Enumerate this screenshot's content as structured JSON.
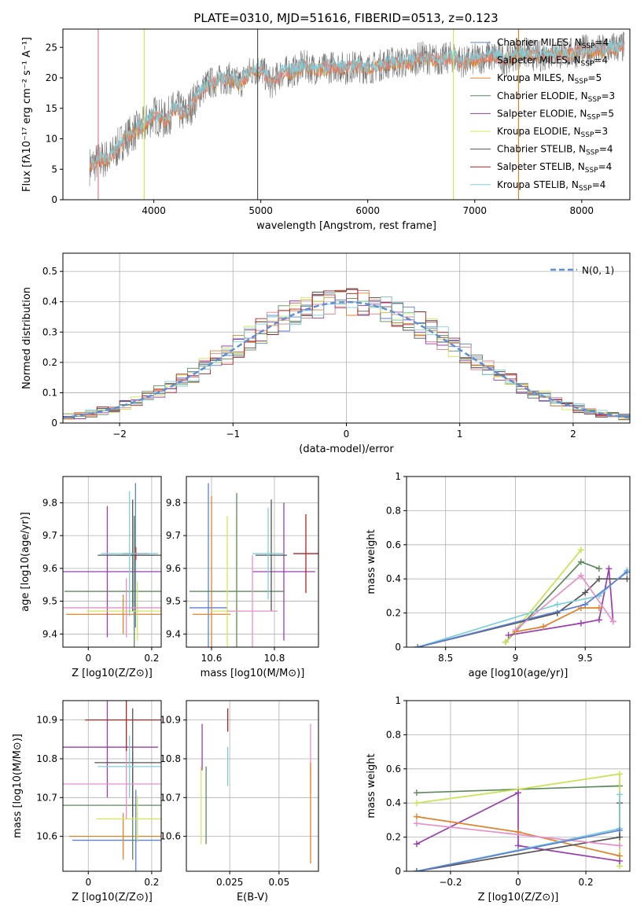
{
  "title": "PLATE=0310, MJD=51616, FIBERID=0513, z=0.123",
  "colors": {
    "Chabrier MILES": "#5b7fd6",
    "Salpeter MILES": "#e37f7f",
    "Kroupa MILES": "#e0822a",
    "Chabrier ELODIE": "#5c8a5c",
    "Salpeter ELODIE": "#9b3db0",
    "Kroupa ELODIE": "#d4e65a",
    "Chabrier STELIB": "#555555",
    "Salpeter STELIB": "#b22222",
    "Kroupa STELIB": "#7ecfd9",
    "Kroupa ELODIE bright": "#c7e34d",
    "Salpeter ELODIE pink": "#e88fc9",
    "normal": "#5b8fd6"
  },
  "chart_data": [
    {
      "id": "spectrum",
      "type": "line",
      "xlabel": "wavelength [Angstrom, rest frame]",
      "ylabel": "Flux [fλ10⁻¹⁷ erg cm⁻² s⁻¹ A⁻¹]",
      "xlim": [
        3150,
        8450
      ],
      "ylim": [
        0,
        28
      ],
      "xticks": [
        4000,
        5000,
        6000,
        7000,
        8000
      ],
      "yticks": [
        0,
        5,
        10,
        15,
        20,
        25
      ],
      "legend_position": "top-right",
      "legend": [
        {
          "label": "Chabrier MILES, N",
          "sub": "SSP",
          "suffix": "=4",
          "color": "#5b7fd6"
        },
        {
          "label": "Salpeter MILES, N",
          "sub": "SSP",
          "suffix": "=4",
          "color": "#e37f7f"
        },
        {
          "label": "Kroupa MILES, N",
          "sub": "SSP",
          "suffix": "=5",
          "color": "#e0822a"
        },
        {
          "label": "Chabrier ELODIE, N",
          "sub": "SSP",
          "suffix": "=3",
          "color": "#5c8a5c"
        },
        {
          "label": "Salpeter ELODIE, N",
          "sub": "SSP",
          "suffix": "=5",
          "color": "#9b3db0"
        },
        {
          "label": "Kroupa ELODIE, N",
          "sub": "SSP",
          "suffix": "=3",
          "color": "#d4e65a"
        },
        {
          "label": "Chabrier STELIB, N",
          "sub": "SSP",
          "suffix": "=4",
          "color": "#555555"
        },
        {
          "label": "Salpeter STELIB, N",
          "sub": "SSP",
          "suffix": "=4",
          "color": "#b22222"
        },
        {
          "label": "Kroupa STELIB, N",
          "sub": "SSP",
          "suffix": "=4",
          "color": "#7ecfd9"
        }
      ],
      "model_curve": {
        "x": [
          3400,
          3500,
          3600,
          3700,
          3800,
          3900,
          4000,
          4100,
          4200,
          4300,
          4400,
          4500,
          4600,
          4700,
          4800,
          4900,
          5000,
          5100,
          5200,
          5300,
          5400,
          5500,
          5600,
          5700,
          5800,
          5900,
          6000,
          6100,
          6200,
          6300,
          6400,
          6500,
          6600,
          6700,
          6800,
          6900,
          7000,
          7100,
          7200,
          7300,
          7400,
          7500,
          7600,
          7700,
          7800,
          7900,
          8000,
          8100,
          8200,
          8300,
          8400
        ],
        "y": [
          5.5,
          6.5,
          7,
          9.5,
          11,
          12,
          14,
          13,
          15,
          14,
          17,
          19,
          19.5,
          20,
          19,
          21,
          21.5,
          19,
          21,
          21,
          22,
          21.5,
          21.5,
          22,
          21.5,
          22,
          21.5,
          22,
          22.5,
          22.5,
          22.5,
          23.5,
          23,
          23,
          23.5,
          22.5,
          23,
          23.5,
          23.5,
          23,
          24,
          24,
          23.5,
          24,
          24,
          24,
          24.5,
          24.5,
          24.5,
          25,
          25
        ]
      },
      "drop_lines": [
        {
          "x": 3480,
          "color": "#e37f7f"
        },
        {
          "x": 3910,
          "color": "#d4e65a"
        },
        {
          "x": 4970,
          "color": "#555555"
        },
        {
          "x": 6800,
          "color": "#d4e65a"
        },
        {
          "x": 7410,
          "color": "#e0822a"
        }
      ]
    },
    {
      "id": "residuals",
      "type": "histogram",
      "xlabel": "(data-model)/error",
      "ylabel": "Normed distribution",
      "xlim": [
        -2.5,
        2.5
      ],
      "ylim": [
        0,
        0.56
      ],
      "xticks": [
        -2,
        -1,
        0,
        1,
        2
      ],
      "yticks": [
        0.0,
        0.1,
        0.2,
        0.3,
        0.4,
        0.5
      ],
      "legend": {
        "label": "N(0, 1)",
        "position": "top-right"
      },
      "bin_width": 0.1
    },
    {
      "id": "age_vs_Z",
      "type": "errorbar",
      "xlabel": "Z [log10(Z/Z⊙)]",
      "ylabel": "age  [log10(age/yr)]",
      "xlim": [
        -0.08,
        0.23
      ],
      "ylim": [
        9.36,
        9.88
      ],
      "xticks": [
        0.0,
        0.2
      ],
      "yticks": [
        9.4,
        9.5,
        9.6,
        9.7,
        9.8
      ],
      "points": [
        {
          "x": 0.149,
          "y": 9.64,
          "xerr": 0.06,
          "yerr": 0.22,
          "color": "#5b7fd6"
        },
        {
          "x": 0.11,
          "y": 9.46,
          "xerr": 0.18,
          "yerr": 0.06,
          "color": "#e0822a"
        },
        {
          "x": 0.145,
          "y": 9.53,
          "xerr": 0.22,
          "yerr": 0.23,
          "color": "#5c8a5c"
        },
        {
          "x": 0.06,
          "y": 9.59,
          "xerr": 0.18,
          "yerr": 0.2,
          "color": "#9b3db0"
        },
        {
          "x": 0.155,
          "y": 9.47,
          "xerr": 0.16,
          "yerr": 0.09,
          "color": "#d4e65a"
        },
        {
          "x": 0.14,
          "y": 9.64,
          "xerr": 0.11,
          "yerr": 0.17,
          "color": "#555555"
        },
        {
          "x": 0.12,
          "y": 9.48,
          "xerr": 0.2,
          "yerr": 0.09,
          "color": "#e88fc9"
        },
        {
          "x": 0.15,
          "y": 9.645,
          "xerr": 0.04,
          "yerr": 0.02,
          "color": "#b22222"
        },
        {
          "x": 0.13,
          "y": 9.645,
          "xerr": 0.09,
          "yerr": 0.19,
          "color": "#7ecfd9"
        }
      ]
    },
    {
      "id": "age_vs_mass",
      "type": "errorbar",
      "xlabel": "mass [log10(M/M⊙)]",
      "xlim": [
        10.52,
        10.94
      ],
      "ylim": [
        9.36,
        9.88
      ],
      "xticks": [
        10.6,
        10.8
      ],
      "yticks": [
        9.4,
        9.5,
        9.6,
        9.7,
        9.8
      ],
      "points": [
        {
          "x": 10.59,
          "y": 9.48,
          "xerr": 0.06,
          "yerr": 0.38,
          "color": "#5b7fd6"
        },
        {
          "x": 10.6,
          "y": 9.46,
          "xerr": 0.06,
          "yerr": 0.36,
          "color": "#e0822a"
        },
        {
          "x": 10.68,
          "y": 9.53,
          "xerr": 0.15,
          "yerr": 0.3,
          "color": "#5c8a5c"
        },
        {
          "x": 10.83,
          "y": 9.59,
          "xerr": 0.1,
          "yerr": 0.21,
          "color": "#9b3db0"
        },
        {
          "x": 10.65,
          "y": 9.47,
          "xerr": 0.05,
          "yerr": 0.29,
          "color": "#d4e65a"
        },
        {
          "x": 10.79,
          "y": 9.64,
          "xerr": 0.05,
          "yerr": 0.17,
          "color": "#555555"
        },
        {
          "x": 10.73,
          "y": 9.47,
          "xerr": 0.08,
          "yerr": 0.17,
          "color": "#e88fc9"
        },
        {
          "x": 10.9,
          "y": 9.645,
          "xerr": 0.04,
          "yerr": 0.12,
          "color": "#b22222"
        },
        {
          "x": 10.78,
          "y": 9.645,
          "xerr": 0.05,
          "yerr": 0.14,
          "color": "#7ecfd9"
        }
      ]
    },
    {
      "id": "weight_vs_age",
      "type": "line",
      "xlabel": "age  [log10(age/yr)]",
      "ylabel": "mass weight",
      "xlim": [
        8.22,
        9.82
      ],
      "ylim": [
        0,
        1.0
      ],
      "xticks": [
        8.5,
        9.0,
        9.5
      ],
      "yticks": [
        0.0,
        0.2,
        0.4,
        0.6,
        0.8,
        1.0
      ],
      "series": [
        {
          "color": "#5c8a5c",
          "x": [
            8.93,
            9.47,
            9.6
          ],
          "y": [
            0.03,
            0.5,
            0.46
          ]
        },
        {
          "color": "#c7e34d",
          "x": [
            8.93,
            9.47
          ],
          "y": [
            0.03,
            0.57
          ]
        },
        {
          "color": "#9b3db0",
          "x": [
            8.95,
            9.47,
            9.6,
            9.67,
            9.7
          ],
          "y": [
            0.07,
            0.14,
            0.16,
            0.46,
            0.15
          ]
        },
        {
          "color": "#e0822a",
          "x": [
            9.0,
            9.2,
            9.47,
            9.6
          ],
          "y": [
            0.09,
            0.12,
            0.23,
            0.23
          ]
        },
        {
          "color": "#555555",
          "x": [
            8.3,
            9.3,
            9.5,
            9.6,
            9.8
          ],
          "y": [
            0.0,
            0.2,
            0.32,
            0.4,
            0.4
          ]
        },
        {
          "color": "#7ecfd9",
          "x": [
            8.3,
            9.3,
            9.6,
            9.8
          ],
          "y": [
            0.0,
            0.25,
            0.3,
            0.45
          ]
        },
        {
          "color": "#e88fc9",
          "x": [
            9.0,
            9.47,
            9.7
          ],
          "y": [
            0.1,
            0.42,
            0.15
          ]
        },
        {
          "color": "#5b7fd6",
          "x": [
            8.3,
            9.5,
            9.8
          ],
          "y": [
            0.0,
            0.25,
            0.44
          ]
        }
      ]
    },
    {
      "id": "mass_vs_Z",
      "type": "errorbar",
      "xlabel": "Z [log10(Z/Z⊙)]",
      "ylabel": "mass [log10(M/M⊙)]",
      "xlim": [
        -0.08,
        0.23
      ],
      "ylim": [
        10.51,
        10.95
      ],
      "xticks": [
        0.0,
        0.2
      ],
      "yticks": [
        10.6,
        10.7,
        10.8,
        10.9
      ],
      "points": [
        {
          "x": 0.15,
          "y": 10.59,
          "xerr": 0.2,
          "yerr": 0.13,
          "color": "#5b7fd6"
        },
        {
          "x": 0.11,
          "y": 10.6,
          "xerr": 0.17,
          "yerr": 0.06,
          "color": "#e0822a"
        },
        {
          "x": 0.14,
          "y": 10.68,
          "xerr": 0.22,
          "yerr": 0.14,
          "color": "#5c8a5c"
        },
        {
          "x": 0.06,
          "y": 10.83,
          "xerr": 0.16,
          "yerr": 0.13,
          "color": "#9b3db0"
        },
        {
          "x": 0.155,
          "y": 10.645,
          "xerr": 0.13,
          "yerr": 0.06,
          "color": "#d4e65a"
        },
        {
          "x": 0.14,
          "y": 10.79,
          "xerr": 0.12,
          "yerr": 0.14,
          "color": "#555555"
        },
        {
          "x": 0.12,
          "y": 10.735,
          "xerr": 0.2,
          "yerr": 0.09,
          "color": "#e88fc9"
        },
        {
          "x": 0.12,
          "y": 10.9,
          "xerr": 0.13,
          "yerr": 0.08,
          "color": "#b22222"
        },
        {
          "x": 0.13,
          "y": 10.78,
          "xerr": 0.1,
          "yerr": 0.08,
          "color": "#7ecfd9"
        }
      ]
    },
    {
      "id": "mass_vs_EBV",
      "type": "errorbar",
      "xlabel": "E(B-V)",
      "xlim": [
        0.003,
        0.07
      ],
      "ylim": [
        10.51,
        10.95
      ],
      "xticks": [
        0.025,
        0.05
      ],
      "yticks": [
        10.6,
        10.7,
        10.8,
        10.9
      ],
      "points": [
        {
          "x": 0.011,
          "y": 10.83,
          "yerr": 0.06,
          "color": "#9b3db0"
        },
        {
          "x": 0.0105,
          "y": 10.68,
          "yerr": 0.1,
          "color": "#d4e65a"
        },
        {
          "x": 0.013,
          "y": 10.68,
          "yerr": 0.1,
          "color": "#5c8a5c"
        },
        {
          "x": 0.024,
          "y": 10.9,
          "yerr": 0.03,
          "color": "#b22222"
        },
        {
          "x": 0.024,
          "y": 10.78,
          "yerr": 0.05,
          "color": "#7ecfd9"
        },
        {
          "x": 0.066,
          "y": 10.8,
          "yerr": 0.09,
          "color": "#e88fc9"
        },
        {
          "x": 0.066,
          "y": 10.66,
          "yerr": 0.13,
          "color": "#e0822a"
        }
      ]
    },
    {
      "id": "weight_vs_Z",
      "type": "line",
      "xlabel": "Z [log10(Z/Z⊙)]",
      "ylabel": "mass weight",
      "xlim": [
        -0.33,
        0.33
      ],
      "ylim": [
        0,
        1.0
      ],
      "xticks": [
        -0.2,
        0.0,
        0.2
      ],
      "yticks": [
        0.0,
        0.2,
        0.4,
        0.6,
        0.8,
        1.0
      ],
      "series": [
        {
          "color": "#5c8a5c",
          "x": [
            -0.3,
            0.0,
            0.3
          ],
          "y": [
            0.46,
            0.48,
            0.5
          ]
        },
        {
          "color": "#c7e34d",
          "x": [
            -0.3,
            0.0,
            0.3,
            0.3
          ],
          "y": [
            0.4,
            0.48,
            0.57,
            0.03
          ]
        },
        {
          "color": "#9b3db0",
          "x": [
            -0.3,
            0.0,
            0.0,
            0.3
          ],
          "y": [
            0.16,
            0.46,
            0.15,
            0.06
          ]
        },
        {
          "color": "#e0822a",
          "x": [
            -0.3,
            0.0,
            0.3
          ],
          "y": [
            0.32,
            0.23,
            0.09
          ]
        },
        {
          "color": "#555555",
          "x": [
            -0.3,
            0.3,
            0.3
          ],
          "y": [
            0.0,
            0.2,
            0.4
          ]
        },
        {
          "color": "#7ecfd9",
          "x": [
            -0.3,
            0.3,
            0.3
          ],
          "y": [
            0.0,
            0.25,
            0.45
          ]
        },
        {
          "color": "#e88fc9",
          "x": [
            -0.3,
            0.3
          ],
          "y": [
            0.28,
            0.15
          ]
        },
        {
          "color": "#5b7fd6",
          "x": [
            -0.3,
            0.3
          ],
          "y": [
            0.0,
            0.24
          ]
        }
      ]
    }
  ]
}
